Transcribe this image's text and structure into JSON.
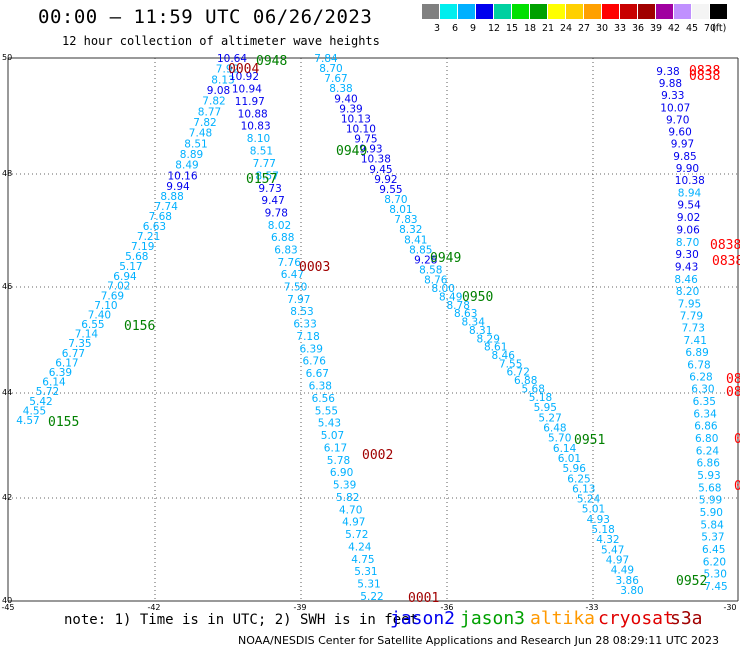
{
  "header": {
    "title": "00:00 – 11:59 UTC 06/26/2023",
    "subtitle": "12 hour collection of altimeter wave heights"
  },
  "legend": {
    "labels": [
      "3",
      "6",
      "9",
      "12",
      "15",
      "18",
      "21",
      "24",
      "27",
      "30",
      "33",
      "36",
      "39",
      "42",
      "45",
      "70",
      "(ft)"
    ],
    "colors": [
      "#808080",
      "#00eeee",
      "#00b0ff",
      "#0000ee",
      "#00d0a0",
      "#00e000",
      "#00a000",
      "#ffff00",
      "#ffd000",
      "#ffa000",
      "#ff0000",
      "#c80000",
      "#a00000",
      "#a000a0",
      "#c090ff",
      "#f4f4f4",
      "#000000"
    ]
  },
  "axes": {
    "lat_labels": [
      "50",
      "48",
      "46",
      "44",
      "42",
      "40"
    ],
    "lon_labels": [
      "-45",
      "-42",
      "-39",
      "-36",
      "-33",
      "-30"
    ]
  },
  "tracks": [
    {
      "id": "t1",
      "labels": [
        "7.84",
        "8.70",
        "7.67",
        "8.38",
        "9.40",
        "9.39",
        "10.13",
        "10.10",
        "9.75",
        "9.93",
        "10.38",
        "9.45",
        "9.92",
        "9.55",
        "8.70",
        "8.01",
        "7.83",
        "8.32",
        "8.41",
        "8.85",
        "9.28",
        "8.58",
        "8.76",
        "8.00",
        "8.49",
        "8.78",
        "8.63",
        "8.34",
        "8.31",
        "8.29",
        "8.61",
        "8.46",
        "7.55",
        "6.72",
        "6.88",
        "5.68",
        "5.18",
        "5.95",
        "5.27",
        "6.48",
        "5.70",
        "6.14",
        "6.01",
        "5.96",
        "6.25",
        "6.13",
        "5.24",
        "5.01",
        "4.93",
        "5.18",
        "4.32",
        "5.47",
        "4.97",
        "4.49",
        "3.86",
        "3.80"
      ],
      "colors": [
        "#00b0ff",
        "#00b0ff",
        "#00b0ff",
        "#00b0ff",
        "#0000ee",
        "#0000ee",
        "#0000ee",
        "#0000ee",
        "#0000ee",
        "#0000ee",
        "#0000ee",
        "#0000ee",
        "#0000ee",
        "#0000ee",
        "#00b0ff",
        "#00b0ff",
        "#00b0ff",
        "#00b0ff",
        "#00b0ff",
        "#00b0ff",
        "#0000ee",
        "#00b0ff",
        "#00b0ff",
        "#00b0ff",
        "#00b0ff",
        "#00b0ff",
        "#00b0ff",
        "#00b0ff",
        "#00b0ff",
        "#00b0ff",
        "#00b0ff",
        "#00b0ff",
        "#00b0ff",
        "#00b0ff",
        "#00b0ff",
        "#00b0ff",
        "#00b0ff",
        "#00b0ff",
        "#00b0ff",
        "#00b0ff",
        "#00b0ff",
        "#00b0ff",
        "#00b0ff",
        "#00b0ff",
        "#00b0ff",
        "#00b0ff",
        "#00b0ff",
        "#00b0ff",
        "#00b0ff",
        "#00b0ff",
        "#00b0ff",
        "#00b0ff",
        "#00b0ff",
        "#00b0ff",
        "#00b0ff",
        "#00b0ff"
      ]
    },
    {
      "id": "t2",
      "labels": [
        "10.64",
        "7.92",
        "8.13",
        "9.08",
        "7.82",
        "8.77",
        "7.82",
        "7.48",
        "8.51",
        "8.89",
        "8.49",
        "10.16",
        "9.94",
        "8.88",
        "7.74",
        "7.68",
        "6.63",
        "7.21",
        "7.19",
        "5.68",
        "5.17",
        "6.94",
        "7.02",
        "7.69",
        "7.10",
        "7.40",
        "6.55",
        "7.14",
        "7.35",
        "6.77",
        "6.17",
        "6.39",
        "6.14",
        "5.72",
        "5.42",
        "4.55",
        "4.57"
      ],
      "colors": [
        "#0000ee",
        "#00b0ff",
        "#00b0ff",
        "#0000ee",
        "#00b0ff",
        "#00b0ff",
        "#00b0ff",
        "#00b0ff",
        "#00b0ff",
        "#00b0ff",
        "#00b0ff",
        "#0000ee",
        "#0000ee",
        "#00b0ff",
        "#00b0ff",
        "#00b0ff",
        "#00b0ff",
        "#00b0ff",
        "#00b0ff",
        "#00b0ff",
        "#00b0ff",
        "#00b0ff",
        "#00b0ff",
        "#00b0ff",
        "#00b0ff",
        "#00b0ff",
        "#00b0ff",
        "#00b0ff",
        "#00b0ff",
        "#00b0ff",
        "#00b0ff",
        "#00b0ff",
        "#00b0ff",
        "#00b0ff",
        "#00b0ff",
        "#00b0ff",
        "#00b0ff"
      ]
    },
    {
      "id": "t3",
      "labels": [
        "10.92",
        "10.94",
        "11.97",
        "10.88",
        "10.83",
        "8.10",
        "8.51",
        "7.77",
        "8.57",
        "9.73",
        "9.47",
        "9.78",
        "8.02",
        "6.88",
        "6.83",
        "7.76",
        "6.47",
        "7.50",
        "7.97",
        "8.53",
        "6.33",
        "7.18",
        "6.39",
        "6.76",
        "6.67",
        "6.38",
        "6.56",
        "5.55",
        "5.43",
        "5.07",
        "6.17",
        "5.78",
        "6.90",
        "5.39",
        "5.82",
        "4.70",
        "4.97",
        "5.72",
        "4.24",
        "4.75",
        "5.31",
        "5.31",
        "5.22"
      ],
      "colors": [
        "#0000ee",
        "#0000ee",
        "#0000ee",
        "#0000ee",
        "#0000ee",
        "#00b0ff",
        "#00b0ff",
        "#00b0ff",
        "#00b0ff",
        "#0000ee",
        "#0000ee",
        "#0000ee",
        "#00b0ff",
        "#00b0ff",
        "#00b0ff",
        "#00b0ff",
        "#00b0ff",
        "#00b0ff",
        "#00b0ff",
        "#00b0ff",
        "#00b0ff",
        "#00b0ff",
        "#00b0ff",
        "#00b0ff",
        "#00b0ff",
        "#00b0ff",
        "#00b0ff",
        "#00b0ff",
        "#00b0ff",
        "#00b0ff",
        "#00b0ff",
        "#00b0ff",
        "#00b0ff",
        "#00b0ff",
        "#00b0ff",
        "#00b0ff",
        "#00b0ff",
        "#00b0ff",
        "#00b0ff",
        "#00b0ff",
        "#00b0ff",
        "#00b0ff",
        "#00b0ff"
      ]
    },
    {
      "id": "t4",
      "labels": [
        "9.38",
        "9.88",
        "9.33",
        "10.07",
        "9.70",
        "9.60",
        "9.97",
        "9.85",
        "9.90",
        "10.38",
        "8.94",
        "9.54",
        "9.02",
        "9.06",
        "8.70",
        "9.30",
        "9.43",
        "8.46",
        "8.20",
        "7.95",
        "7.79",
        "7.73",
        "7.41",
        "6.89",
        "6.78",
        "6.28",
        "6.30",
        "6.35",
        "6.34",
        "6.86",
        "6.80",
        "6.24",
        "6.86",
        "5.93",
        "5.68",
        "5.99",
        "5.90",
        "5.84",
        "5.37",
        "6.45",
        "6.20",
        "5.30",
        "7.45"
      ],
      "colors": [
        "#0000ee",
        "#0000ee",
        "#0000ee",
        "#0000ee",
        "#0000ee",
        "#0000ee",
        "#0000ee",
        "#0000ee",
        "#0000ee",
        "#0000ee",
        "#00b0ff",
        "#0000ee",
        "#0000ee",
        "#0000ee",
        "#00b0ff",
        "#0000ee",
        "#0000ee",
        "#00b0ff",
        "#00b0ff",
        "#00b0ff",
        "#00b0ff",
        "#00b0ff",
        "#00b0ff",
        "#00b0ff",
        "#00b0ff",
        "#00b0ff",
        "#00b0ff",
        "#00b0ff",
        "#00b0ff",
        "#00b0ff",
        "#00b0ff",
        "#00b0ff",
        "#00b0ff",
        "#00b0ff",
        "#00b0ff",
        "#00b0ff",
        "#00b0ff",
        "#00b0ff",
        "#00b0ff",
        "#00b0ff",
        "#00b0ff",
        "#00b0ff",
        "#00b0ff"
      ]
    }
  ],
  "times": [
    {
      "text": "0004",
      "color": "#a00000"
    },
    {
      "text": "0948",
      "color": "#008000"
    },
    {
      "text": "0949",
      "color": "#008000"
    },
    {
      "text": "0157",
      "color": "#008000"
    },
    {
      "text": "0003",
      "color": "#a00000"
    },
    {
      "text": "0949",
      "color": "#008000"
    },
    {
      "text": "0950",
      "color": "#008000"
    },
    {
      "text": "0156",
      "color": "#008000"
    },
    {
      "text": "0155",
      "color": "#008000"
    },
    {
      "text": "0951",
      "color": "#008000"
    },
    {
      "text": "0002",
      "color": "#a00000"
    },
    {
      "text": "0952",
      "color": "#008000"
    },
    {
      "text": "0001",
      "color": "#a00000"
    },
    {
      "text": "0838",
      "color": "#ff0000"
    },
    {
      "text": "0838",
      "color": "#ff0000"
    },
    {
      "text": "0838",
      "color": "#ff0000"
    },
    {
      "text": "0838",
      "color": "#ff0000"
    }
  ],
  "edge_fragments": [
    {
      "text": "08",
      "color": "#ff0000"
    },
    {
      "text": "08",
      "color": "#ff0000"
    },
    {
      "text": "0",
      "color": "#ff0000"
    },
    {
      "text": "0",
      "color": "#ff0000"
    }
  ],
  "note": "note: 1) Time is in UTC; 2) SWH is in feet",
  "satellites": [
    {
      "name": "jason2",
      "color": "#0000ee"
    },
    {
      "name": "jason3",
      "color": "#00a000"
    },
    {
      "name": "altika",
      "color": "#ff9900"
    },
    {
      "name": "cryosat",
      "color": "#e00000"
    },
    {
      "name": "s3a",
      "color": "#a00000"
    }
  ],
  "footer": "NOAA/NESDIS Center for Satellite Applications and Research   Jun 28 08:29:11 UTC 2023"
}
